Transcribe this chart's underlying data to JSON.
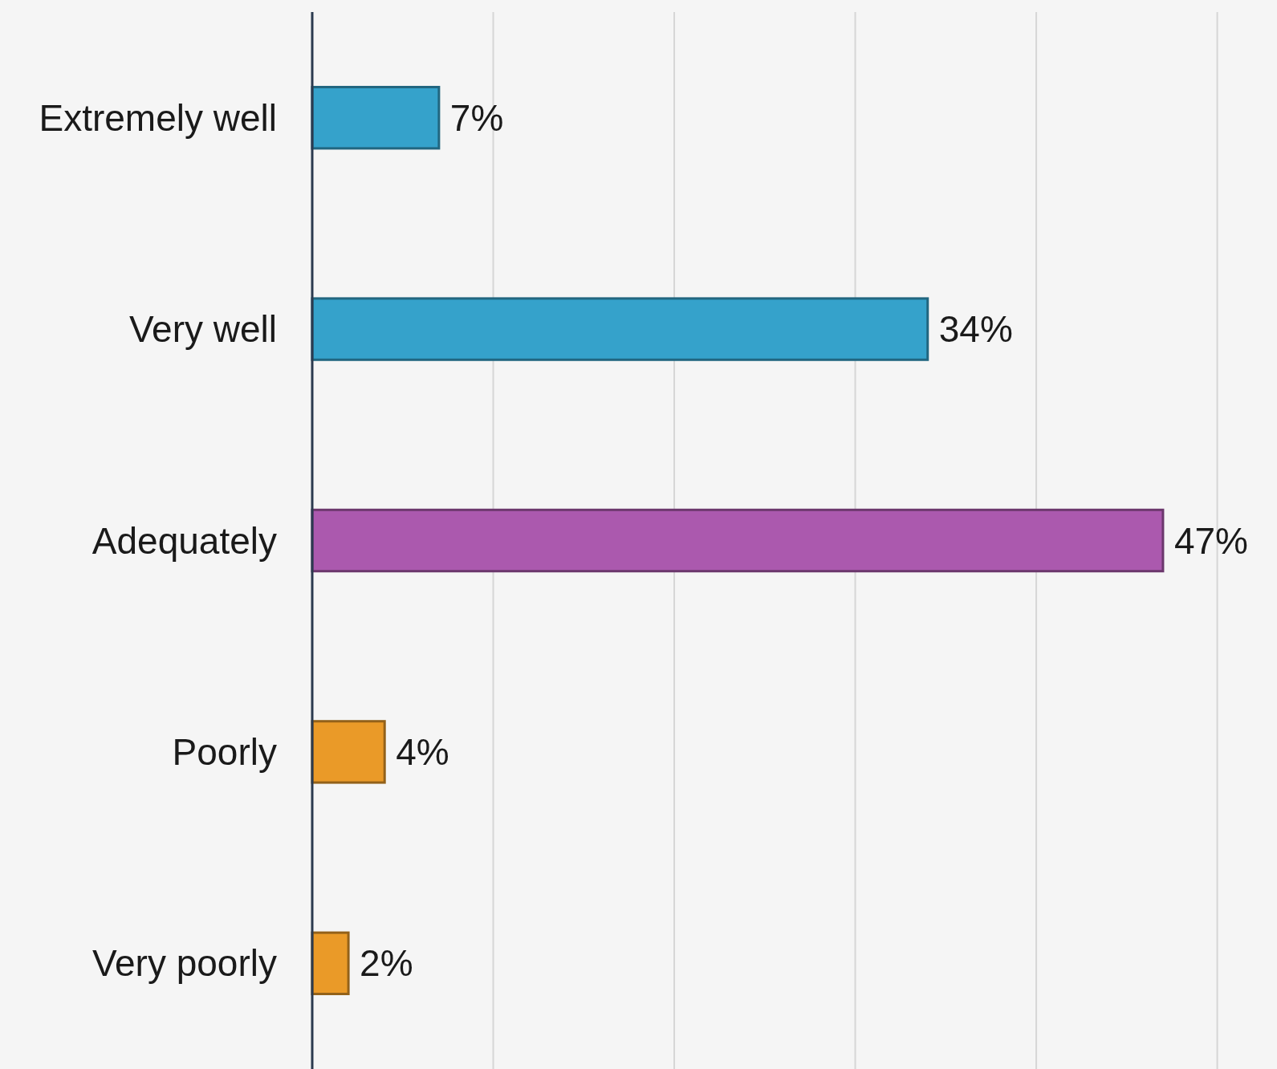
{
  "chart_data": {
    "type": "bar",
    "orientation": "horizontal",
    "categories": [
      "Extremely well",
      "Very well",
      "Adequately",
      "Poorly",
      "Very poorly"
    ],
    "values": [
      7,
      34,
      47,
      4,
      2
    ],
    "colors": [
      "#35a2cb",
      "#35a2cb",
      "#ab59ae",
      "#ea9a28",
      "#ea9a28"
    ],
    "value_labels": [
      "7%",
      "34%",
      "47%",
      "4%",
      "2%"
    ],
    "xlim": [
      0,
      53.3
    ],
    "xticks": [
      {
        "value": 0,
        "label": null
      },
      {
        "value": 10,
        "label": null
      },
      {
        "value": 20,
        "label": null
      },
      {
        "value": 30,
        "label": null
      },
      {
        "value": 40,
        "label": null
      },
      {
        "value": 50,
        "label": null
      }
    ],
    "grid": "x",
    "tick_labels": "y"
  }
}
